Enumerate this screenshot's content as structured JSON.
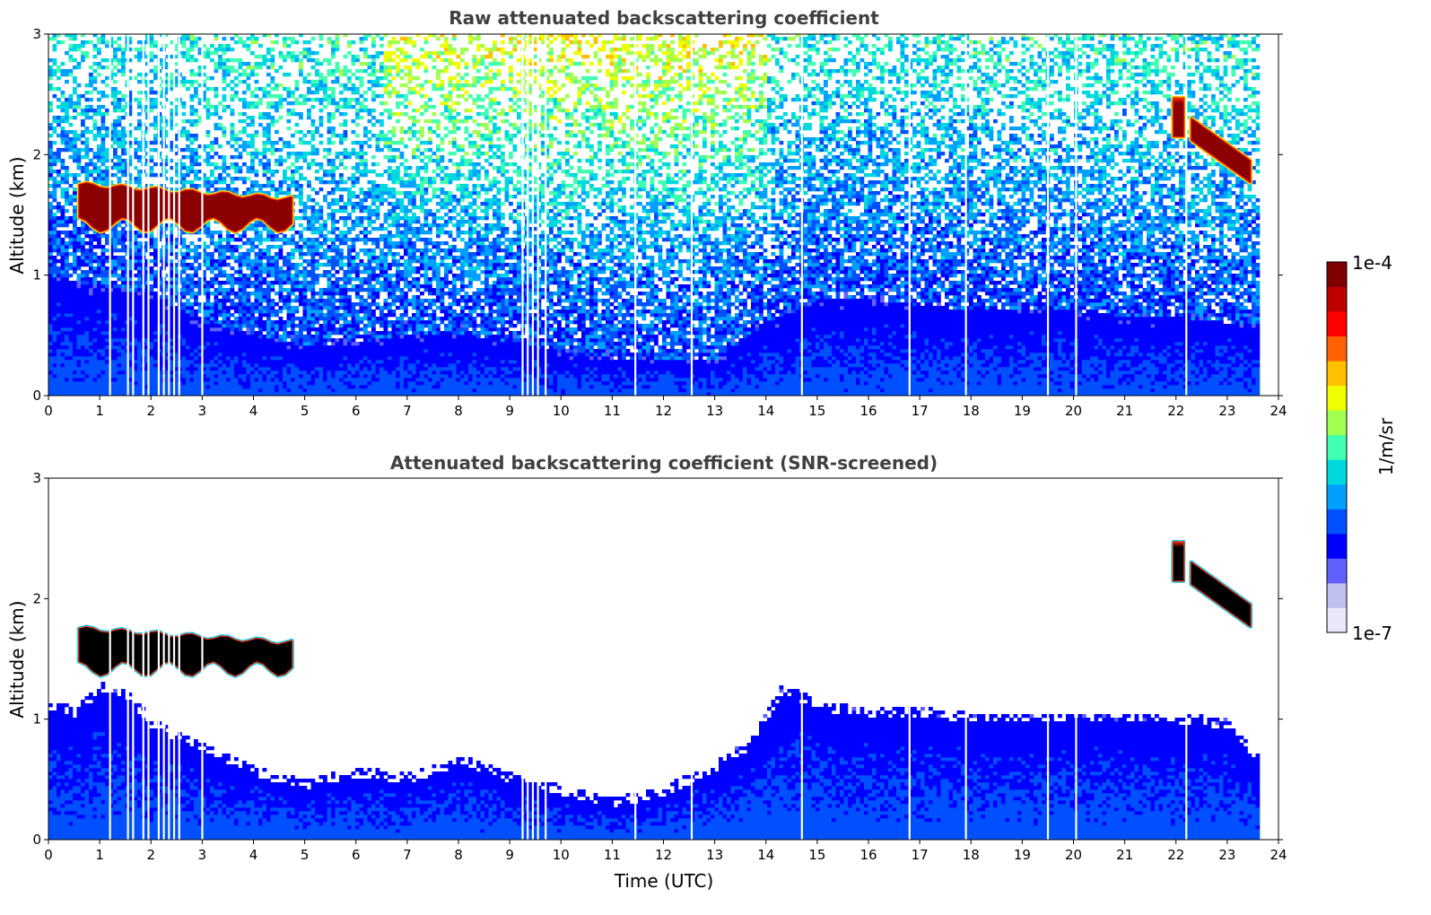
{
  "chart_data": [
    {
      "type": "heatmap",
      "title": "Raw attenuated backscattering coefficient",
      "xlabel": "",
      "ylabel": "Altitude (km)",
      "xlim": [
        0,
        24
      ],
      "ylim": [
        0,
        3
      ],
      "xticks": [
        "0",
        "1",
        "2",
        "3",
        "4",
        "5",
        "6",
        "7",
        "8",
        "9",
        "10",
        "11",
        "12",
        "13",
        "14",
        "15",
        "16",
        "17",
        "18",
        "19",
        "20",
        "21",
        "22",
        "23",
        "24"
      ],
      "yticks": [
        "0",
        "1",
        "2",
        "3"
      ],
      "data_end_time": 23.6,
      "cloud_layers": [
        {
          "t_start": 0.6,
          "t_end": 4.75,
          "base_km": 1.42,
          "top_km": 1.75
        },
        {
          "t_start": 21.95,
          "t_end": 22.15,
          "base_km": 2.15,
          "top_km": 2.45
        },
        {
          "t_start": 22.3,
          "t_end": 23.45,
          "base_km": 1.75,
          "top_km": 2.3
        }
      ],
      "boundary_layer_top_km": [
        [
          0,
          1.0
        ],
        [
          1,
          0.9
        ],
        [
          2,
          0.85
        ],
        [
          3,
          0.6
        ],
        [
          4,
          0.5
        ],
        [
          5,
          0.4
        ],
        [
          6,
          0.45
        ],
        [
          7,
          0.5
        ],
        [
          8,
          0.5
        ],
        [
          9,
          0.45
        ],
        [
          10,
          0.35
        ],
        [
          11,
          0.3
        ],
        [
          12,
          0.3
        ],
        [
          13,
          0.3
        ],
        [
          14,
          0.6
        ],
        [
          15,
          0.8
        ],
        [
          16,
          0.8
        ],
        [
          17,
          0.75
        ],
        [
          18,
          0.7
        ],
        [
          19,
          0.7
        ],
        [
          20,
          0.7
        ],
        [
          21,
          0.65
        ],
        [
          22,
          0.65
        ],
        [
          23,
          0.6
        ],
        [
          23.6,
          0.6
        ]
      ],
      "missing_data_times": [
        1.2,
        1.55,
        1.65,
        1.85,
        1.95,
        2.15,
        2.25,
        2.35,
        2.45,
        2.55,
        3.0,
        9.25,
        9.35,
        9.45,
        9.55,
        9.7,
        11.45,
        12.55,
        14.7,
        16.8,
        17.9,
        19.5,
        20.05,
        22.2
      ]
    },
    {
      "type": "heatmap",
      "title": "Attenuated backscattering coefficient (SNR-screened)",
      "xlabel": "Time (UTC)",
      "ylabel": "Altitude (km)",
      "xlim": [
        0,
        24
      ],
      "ylim": [
        0,
        3
      ],
      "xticks": [
        "0",
        "1",
        "2",
        "3",
        "4",
        "5",
        "6",
        "7",
        "8",
        "9",
        "10",
        "11",
        "12",
        "13",
        "14",
        "15",
        "16",
        "17",
        "18",
        "19",
        "20",
        "21",
        "22",
        "23",
        "24"
      ],
      "yticks": [
        "0",
        "1",
        "2",
        "3"
      ],
      "data_end_time": 23.6,
      "screened_top_km": [
        [
          0,
          1.15
        ],
        [
          0.5,
          1.1
        ],
        [
          1,
          1.3
        ],
        [
          1.5,
          1.25
        ],
        [
          2,
          1.0
        ],
        [
          2.5,
          0.9
        ],
        [
          3,
          0.8
        ],
        [
          4,
          0.6
        ],
        [
          5,
          0.5
        ],
        [
          6,
          0.6
        ],
        [
          7,
          0.55
        ],
        [
          8,
          0.7
        ],
        [
          9,
          0.55
        ],
        [
          10,
          0.45
        ],
        [
          10.5,
          0.4
        ],
        [
          11,
          0.35
        ],
        [
          12,
          0.45
        ],
        [
          13,
          0.65
        ],
        [
          13.7,
          0.85
        ],
        [
          14.3,
          1.3
        ],
        [
          15,
          1.15
        ],
        [
          16,
          1.1
        ],
        [
          17,
          1.1
        ],
        [
          18,
          1.05
        ],
        [
          19,
          1.05
        ],
        [
          20,
          1.05
        ],
        [
          21,
          1.05
        ],
        [
          22,
          1.05
        ],
        [
          23,
          1.0
        ],
        [
          23.6,
          0.7
        ]
      ]
    }
  ],
  "colorbar": {
    "label": "1/m/sr",
    "max_label": "1e-4",
    "min_label": "1e-7",
    "scale": "log",
    "colors": [
      "#e8e8f8",
      "#c0c0f0",
      "#6060ff",
      "#0000ff",
      "#0050ff",
      "#00a0ff",
      "#00d8e0",
      "#40ffb0",
      "#a0ff50",
      "#f0ff00",
      "#ffc000",
      "#ff6000",
      "#ff0000",
      "#c00000",
      "#800000"
    ]
  },
  "colors": {
    "cloud_core": "#8b0000",
    "screened_core": "#000000",
    "title": "#404040"
  }
}
